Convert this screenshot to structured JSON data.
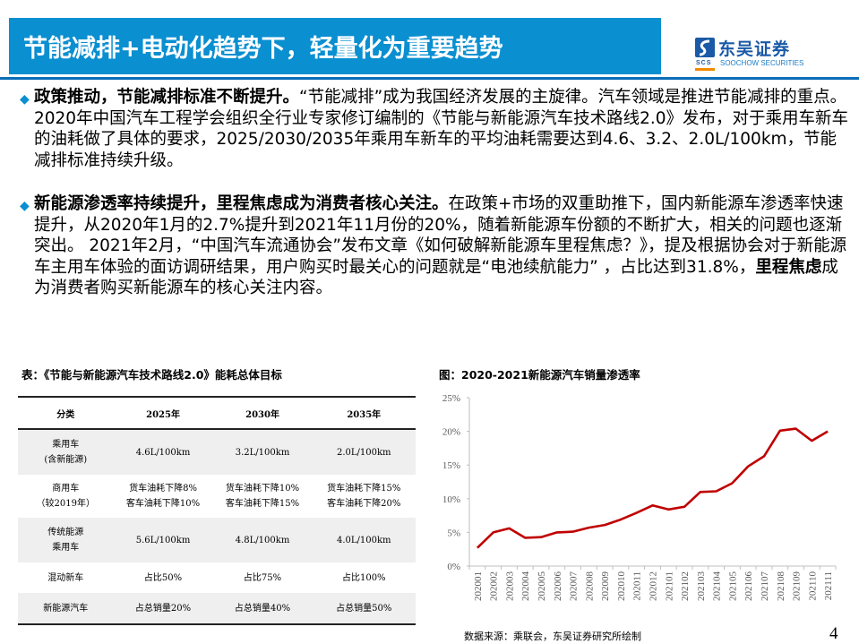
{
  "header": {
    "title": "节能减排+电动化趋势下，轻量化为重要趋势",
    "logo": {
      "cn": "东吴证券",
      "en": "SOOCHOW SECURITIES",
      "mark": "SCS",
      "icon": "soochow-logo-icon"
    },
    "accent_color": "#0a8fd0"
  },
  "paragraphs": [
    {
      "bullet": "◆",
      "lead": "政策推动，节能减排标准不断提升。",
      "text": "“节能减排”成为我国经济发展的主旋律。汽车领域是推进节能减排的重点。2020年中国汽车工程学会组织全行业专家修订编制的《节能与新能源汽车技术路线2.0》发布，对于乘用车新车的油耗做了具体的要求，2025/2030/2035年乘用车新车的平均油耗需要达到4.6、3.2、2.0L/100km，节能减排标准持续升级。"
    },
    {
      "bullet": "◆",
      "lead": "新能源渗透率持续提升，里程焦虑成为消费者核心关注。",
      "text_a": "在政策+市场的双重助推下，国内新能源车渗透率快速提升，从2020年1月的2.7%提升到2021年11月份的20%，随着新能源车份额的不断扩大，相关的问题也逐渐突出。 2021年2月，“中国汽车流通协会”发布文章《如何破解新能源车里程焦虑？》，提及根据协会对于新能源车主用车体验的面访调研结果，用户购买时最关心的问题就是“电池续航能力” ，占比达到31.8%，",
      "bold_mid": "里程焦虑",
      "text_b": "成为消费者购买新能源车的核心关注内容。"
    }
  ],
  "table": {
    "caption": "表：《节能与新能源汽车技术路线2.0》能耗总体目标",
    "headers": [
      "分类",
      "2025年",
      "2030年",
      "2035年"
    ],
    "rows": [
      {
        "category": [
          "乘用车",
          "(含新能源)"
        ],
        "cells": [
          [
            "4.6L/100km"
          ],
          [
            "3.2L/100km"
          ],
          [
            "2.0L/100km"
          ]
        ]
      },
      {
        "category": [
          "商用车",
          "（较2019年）"
        ],
        "cells": [
          [
            "货车油耗下降8%",
            "客车油耗下降10%"
          ],
          [
            "货车油耗下降10%",
            "客车油耗下降15%"
          ],
          [
            "货车油耗下降15%",
            "客车油耗下降20%"
          ]
        ]
      },
      {
        "category": [
          "传统能源",
          "乘用车"
        ],
        "cells": [
          [
            "5.6L/100km"
          ],
          [
            "4.8L/100km"
          ],
          [
            "4.0L/100km"
          ]
        ]
      },
      {
        "category": [
          "混动新车"
        ],
        "cells": [
          [
            "占比50%"
          ],
          [
            "占比75%"
          ],
          [
            "占比100%"
          ]
        ]
      },
      {
        "category": [
          "新能源汽车"
        ],
        "cells": [
          [
            "占总销量20%"
          ],
          [
            "占总销量40%"
          ],
          [
            "占总销量50%"
          ]
        ]
      }
    ]
  },
  "chart_data": {
    "type": "line",
    "title": "图：2020-2021新能源汽车销量渗透率",
    "xlabel": "",
    "ylabel": "",
    "ylim": [
      0,
      25
    ],
    "yticks": [
      "0%",
      "5%",
      "10%",
      "15%",
      "20%",
      "25%"
    ],
    "grid": false,
    "legend": "none",
    "categories": [
      "202001",
      "202002",
      "202003",
      "202004",
      "202005",
      "202006",
      "202007",
      "202008",
      "202009",
      "202010",
      "202011",
      "202012",
      "202101",
      "202102",
      "202103",
      "202104",
      "202105",
      "202106",
      "202107",
      "202108",
      "202109",
      "202110",
      "202111"
    ],
    "series": [
      {
        "name": "新能源汽车销量渗透率",
        "color": "#c00000",
        "values": [
          2.7,
          5.0,
          5.6,
          4.2,
          4.3,
          5.0,
          5.1,
          5.7,
          6.1,
          6.9,
          7.9,
          9.0,
          8.4,
          8.8,
          11.0,
          11.1,
          12.3,
          14.8,
          16.3,
          20.1,
          20.4,
          18.6,
          20.0
        ]
      }
    ]
  },
  "footer": {
    "source": "数据来源：乘联会，东吴证券研究所绘制",
    "page_number": "4"
  }
}
